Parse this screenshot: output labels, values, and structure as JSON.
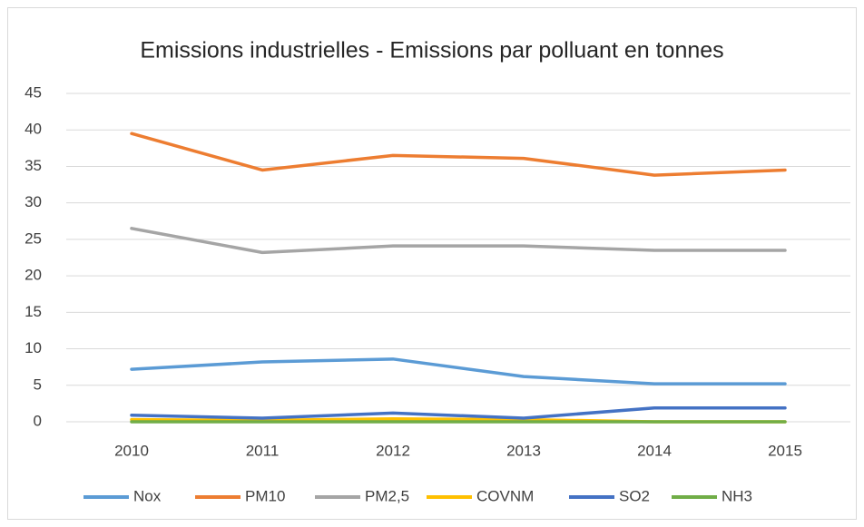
{
  "chart_data": {
    "type": "line",
    "title": "Emissions industrielles - Emissions par polluant en tonnes",
    "categories": [
      "2010",
      "2011",
      "2012",
      "2013",
      "2014",
      "2015"
    ],
    "series": [
      {
        "name": "Nox",
        "color": "#5b9bd5",
        "values": [
          7.2,
          8.2,
          8.6,
          6.2,
          5.2,
          5.2
        ]
      },
      {
        "name": "PM10",
        "color": "#ed7d31",
        "values": [
          39.5,
          34.5,
          36.5,
          36.1,
          33.8,
          34.5
        ]
      },
      {
        "name": "PM2,5",
        "color": "#a5a5a5",
        "values": [
          26.5,
          23.2,
          24.1,
          24.1,
          23.5,
          23.5
        ]
      },
      {
        "name": "COVNM",
        "color": "#ffc000",
        "values": [
          0.3,
          0.2,
          0.4,
          0.3,
          0,
          0
        ]
      },
      {
        "name": "SO2",
        "color": "#4472c4",
        "values": [
          0.9,
          0.5,
          1.2,
          0.5,
          1.9,
          1.9
        ]
      },
      {
        "name": "NH3",
        "color": "#70ad47",
        "values": [
          0,
          0,
          0,
          0,
          0,
          0
        ]
      }
    ],
    "ylim": [
      0,
      45
    ],
    "yticks": [
      0,
      5,
      10,
      15,
      20,
      25,
      30,
      35,
      40,
      45
    ],
    "grid": true,
    "legend": "bottom"
  }
}
